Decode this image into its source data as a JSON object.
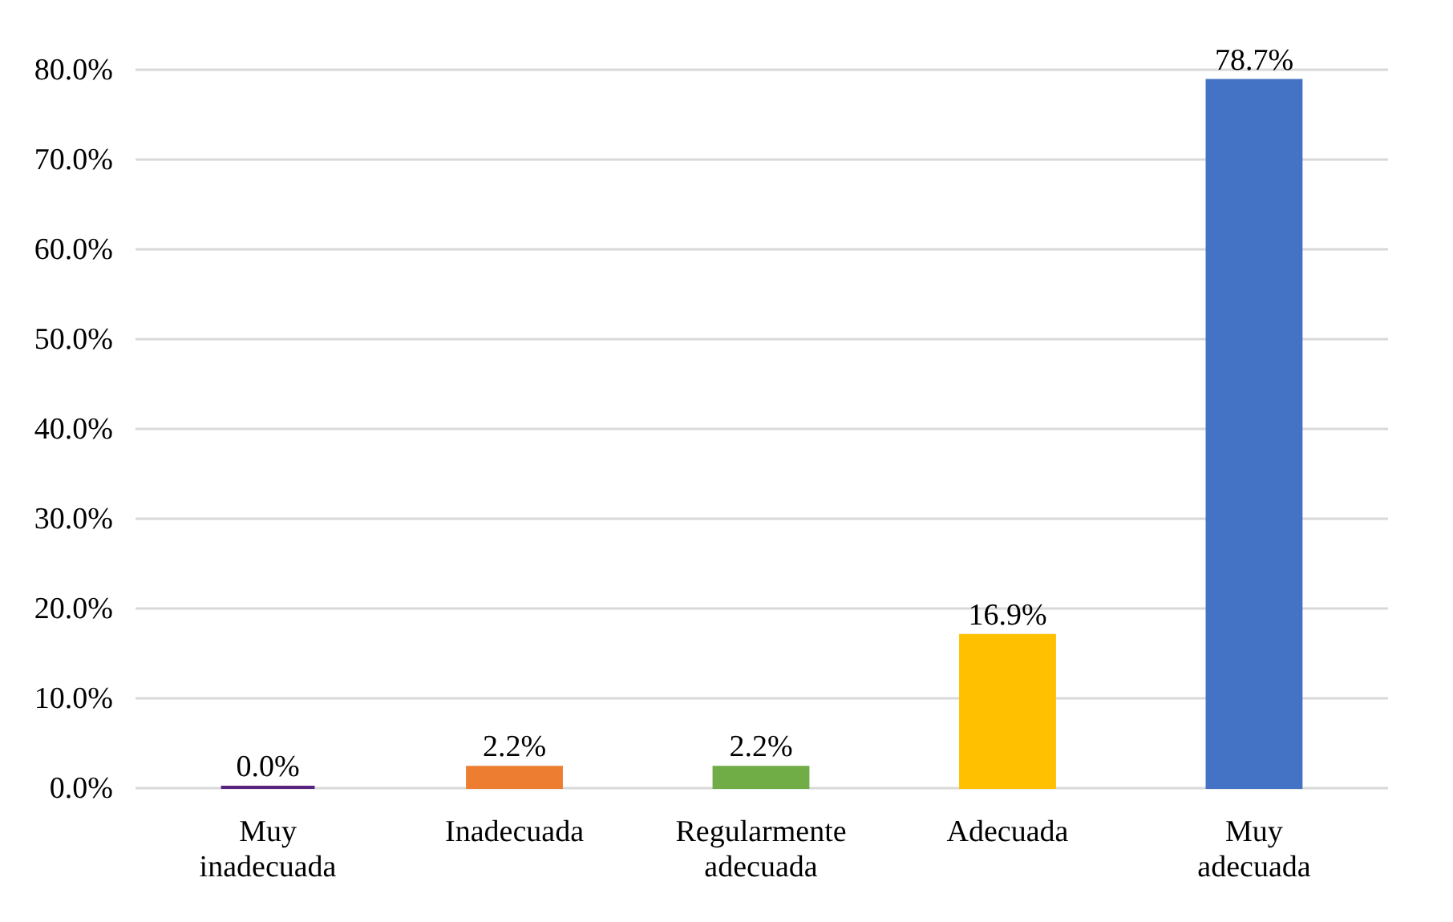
{
  "chart_data": {
    "type": "bar",
    "categories": [
      "Muy inadecuada",
      "Inadecuada",
      "Regularmente adecuada",
      "Adecuada",
      "Muy adecuada"
    ],
    "values": [
      0.0,
      2.2,
      2.2,
      16.9,
      78.7
    ],
    "colors": [
      "#582480",
      "#ed7d31",
      "#70ad47",
      "#ffc000",
      "#4472c4"
    ],
    "value_labels": [
      "0.0%",
      "2.2%",
      "2.2%",
      "16.9%",
      "78.7%"
    ],
    "ylim": [
      0,
      80
    ],
    "yticks": [
      {
        "value": 0,
        "label": "0.0%"
      },
      {
        "value": 10,
        "label": "10.0%"
      },
      {
        "value": 20,
        "label": "20.0%"
      },
      {
        "value": 30,
        "label": "30.0%"
      },
      {
        "value": 40,
        "label": "40.0%"
      },
      {
        "value": 50,
        "label": "50.0%"
      },
      {
        "value": 60,
        "label": "60.0%"
      },
      {
        "value": 70,
        "label": "70.0%"
      },
      {
        "value": 80,
        "label": "80.0%"
      }
    ],
    "grid": "y"
  }
}
